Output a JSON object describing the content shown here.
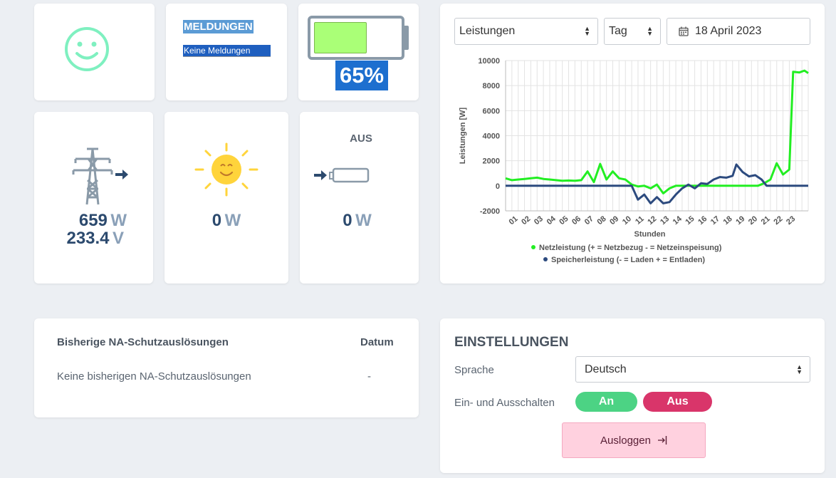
{
  "status_cards": {
    "smiley_icon": "smiley-face-icon",
    "messages_title": "MELDUNGEN",
    "messages_text": "Keine Meldungen",
    "battery_percent": "65%",
    "battery_level": 0.65
  },
  "grid": {
    "power_value": "659",
    "power_unit": "W",
    "voltage_value": "233.4",
    "voltage_unit": "V"
  },
  "solar": {
    "power_value": "0",
    "power_unit": "W"
  },
  "storage": {
    "state": "AUS",
    "power_value": "0",
    "power_unit": "W"
  },
  "chart_controls": {
    "metric": "Leistungen",
    "period": "Tag",
    "date": "18 April 2023"
  },
  "chart_data": {
    "type": "line",
    "xlabel": "Stunden",
    "ylabel": "Leistungen [W]",
    "ylim": [
      -2000,
      10000
    ],
    "yticks": [
      "10000",
      "8000",
      "6000",
      "4000",
      "2000",
      "0",
      "-2000"
    ],
    "xticks": [
      "01",
      "02",
      "03",
      "04",
      "05",
      "06",
      "07",
      "08",
      "09",
      "10",
      "11",
      "12",
      "13",
      "14",
      "15",
      "16",
      "17",
      "18",
      "19",
      "20",
      "21",
      "22",
      "23"
    ],
    "legend_position": "bottom",
    "series": [
      {
        "name": "Netzleistung (+ = Netzbezug - = Netzeinspeisung)",
        "color": "#22ee22",
        "points": [
          [
            0,
            600
          ],
          [
            0.5,
            450
          ],
          [
            1,
            500
          ],
          [
            1.5,
            550
          ],
          [
            2,
            600
          ],
          [
            2.5,
            650
          ],
          [
            3,
            550
          ],
          [
            3.5,
            500
          ],
          [
            4,
            450
          ],
          [
            4.5,
            400
          ],
          [
            5,
            420
          ],
          [
            5.5,
            400
          ],
          [
            6,
            450
          ],
          [
            6.5,
            1150
          ],
          [
            7,
            300
          ],
          [
            7.5,
            1750
          ],
          [
            8,
            500
          ],
          [
            8.5,
            1150
          ],
          [
            9,
            600
          ],
          [
            9.5,
            500
          ],
          [
            10,
            100
          ],
          [
            10.5,
            -50
          ],
          [
            11,
            0
          ],
          [
            11.5,
            -200
          ],
          [
            12,
            100
          ],
          [
            12.5,
            -600
          ],
          [
            13,
            -200
          ],
          [
            13.5,
            0
          ],
          [
            14,
            0
          ],
          [
            15,
            0
          ],
          [
            16,
            0
          ],
          [
            17,
            0
          ],
          [
            18,
            0
          ],
          [
            19,
            0
          ],
          [
            20,
            0
          ],
          [
            20.5,
            200
          ],
          [
            21,
            500
          ],
          [
            21.5,
            1800
          ],
          [
            22,
            900
          ],
          [
            22.5,
            1300
          ],
          [
            22.8,
            9100
          ],
          [
            23.3,
            9050
          ],
          [
            23.7,
            9200
          ],
          [
            24,
            9000
          ]
        ]
      },
      {
        "name": "Speicherleistung (- = Laden  + = Entladen)",
        "color": "#2c4a7e",
        "points": [
          [
            0,
            0
          ],
          [
            10,
            0
          ],
          [
            10.5,
            -1100
          ],
          [
            11,
            -700
          ],
          [
            11.5,
            -1400
          ],
          [
            12,
            -900
          ],
          [
            12.5,
            -1400
          ],
          [
            13,
            -1300
          ],
          [
            13.5,
            -700
          ],
          [
            14,
            -200
          ],
          [
            14.5,
            100
          ],
          [
            15,
            -200
          ],
          [
            15.5,
            200
          ],
          [
            16,
            150
          ],
          [
            16.5,
            500
          ],
          [
            17,
            700
          ],
          [
            17.5,
            650
          ],
          [
            18,
            800
          ],
          [
            18.3,
            1700
          ],
          [
            18.8,
            1100
          ],
          [
            19.3,
            750
          ],
          [
            19.8,
            850
          ],
          [
            20.3,
            500
          ],
          [
            20.7,
            0
          ],
          [
            21,
            0
          ],
          [
            24,
            0
          ]
        ]
      }
    ]
  },
  "history": {
    "col_title": "Bisherige NA-Schutzauslösungen",
    "col_date": "Datum",
    "empty_text": "Keine bisherigen NA-Schutzauslösungen",
    "empty_date": "-"
  },
  "settings": {
    "title": "EINSTELLUNGEN",
    "language_label": "Sprache",
    "language_value": "Deutsch",
    "switch_label": "Ein- und Ausschalten",
    "on_label": "An",
    "off_label": "Aus",
    "on_color": "#4cd384",
    "off_color": "#d9356a",
    "logout_label": "Ausloggen"
  }
}
